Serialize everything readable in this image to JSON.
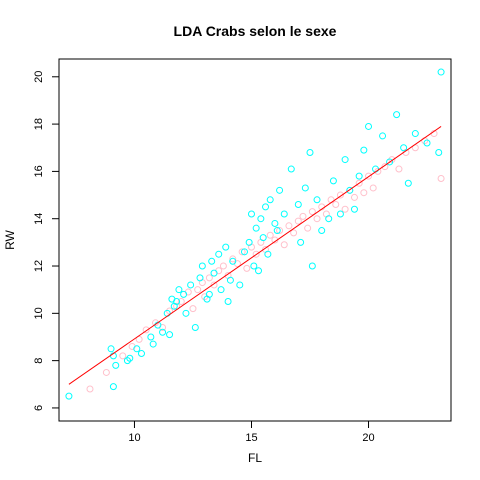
{
  "chart_data": {
    "type": "scatter",
    "title": "LDA Crabs selon le sexe",
    "xlabel": "FL",
    "ylabel": "RW",
    "xlim": [
      6.776,
      23.524
    ],
    "ylim": [
      5.448,
      20.752
    ],
    "xticks": [
      10,
      15,
      20
    ],
    "yticks": [
      6,
      8,
      10,
      12,
      14,
      16,
      18,
      20
    ],
    "grid": false,
    "legend": "none",
    "colors": {
      "group_a": "#00ffff",
      "group_b": "#ffc0cb",
      "fit": "#ff0000",
      "axis": "#000000"
    },
    "series": [
      {
        "key": "group_a",
        "x": [
          7.2,
          9.0,
          9.1,
          9.1,
          9.2,
          9.7,
          9.8,
          10.1,
          10.3,
          10.7,
          10.8,
          11.0,
          11.2,
          11.4,
          11.5,
          11.6,
          11.7,
          11.8,
          11.9,
          12.1,
          12.2,
          12.4,
          12.6,
          12.8,
          12.9,
          13.1,
          13.2,
          13.3,
          13.4,
          13.6,
          13.7,
          13.9,
          14.0,
          14.1,
          14.2,
          14.5,
          14.7,
          14.9,
          15.0,
          15.1,
          15.2,
          15.3,
          15.4,
          15.5,
          15.6,
          15.7,
          15.8,
          16.0,
          16.1,
          16.2,
          16.4,
          16.7,
          17.0,
          17.1,
          17.3,
          17.5,
          17.6,
          17.8,
          18.0,
          18.3,
          18.5,
          18.8,
          19.0,
          19.2,
          19.4,
          19.6,
          19.8,
          20.0,
          20.3,
          20.6,
          20.9,
          21.2,
          21.5,
          21.7,
          22.0,
          22.5,
          23.0,
          23.1
        ],
        "y": [
          6.5,
          8.5,
          6.9,
          8.2,
          7.8,
          8.0,
          8.1,
          8.5,
          8.3,
          9.0,
          8.7,
          9.5,
          9.2,
          10.0,
          9.1,
          10.6,
          10.3,
          10.5,
          11.0,
          10.8,
          10.0,
          11.2,
          9.4,
          11.5,
          12.0,
          10.6,
          10.8,
          12.2,
          11.7,
          12.5,
          11.0,
          12.8,
          10.5,
          11.4,
          12.2,
          11.2,
          12.6,
          13.0,
          14.2,
          12.0,
          13.6,
          11.8,
          14.0,
          13.2,
          14.5,
          12.5,
          14.8,
          13.8,
          13.5,
          15.2,
          14.2,
          16.1,
          14.6,
          13.0,
          15.3,
          16.8,
          12.0,
          14.8,
          13.5,
          14.0,
          15.6,
          14.2,
          16.5,
          15.2,
          14.4,
          15.8,
          16.9,
          17.9,
          16.1,
          17.5,
          16.4,
          18.4,
          17.0,
          15.5,
          17.6,
          17.2,
          16.8,
          20.2
        ]
      },
      {
        "key": "group_b",
        "x": [
          8.1,
          8.8,
          9.5,
          9.9,
          10.2,
          10.5,
          10.9,
          11.2,
          11.5,
          11.8,
          12.0,
          12.3,
          12.5,
          12.7,
          12.9,
          13.0,
          13.2,
          13.4,
          13.6,
          13.8,
          14.0,
          14.2,
          14.4,
          14.6,
          14.8,
          15.0,
          15.2,
          15.4,
          15.6,
          15.8,
          16.0,
          16.2,
          16.4,
          16.6,
          16.8,
          17.0,
          17.2,
          17.4,
          17.6,
          17.8,
          18.0,
          18.2,
          18.4,
          18.6,
          18.8,
          19.0,
          19.2,
          19.4,
          19.6,
          19.8,
          20.0,
          20.2,
          20.4,
          20.7,
          21.0,
          21.3,
          21.6,
          22.0,
          22.4,
          22.8,
          23.1
        ],
        "y": [
          6.8,
          7.5,
          8.2,
          8.6,
          8.9,
          9.3,
          9.6,
          9.4,
          10.1,
          10.3,
          10.5,
          10.9,
          10.2,
          11.0,
          11.3,
          10.7,
          11.5,
          11.2,
          11.8,
          12.0,
          11.6,
          12.3,
          12.1,
          12.6,
          11.9,
          12.8,
          12.5,
          13.0,
          12.7,
          13.3,
          13.1,
          13.5,
          12.9,
          13.7,
          13.4,
          13.9,
          14.1,
          13.6,
          14.3,
          14.0,
          14.5,
          14.2,
          14.8,
          14.6,
          15.0,
          14.4,
          15.2,
          14.9,
          15.5,
          15.1,
          15.8,
          15.3,
          16.0,
          16.2,
          16.5,
          16.1,
          16.8,
          17.0,
          17.3,
          17.6,
          15.7
        ]
      }
    ],
    "fit_line": {
      "x": [
        7.2,
        23.1
      ],
      "y": [
        7.0,
        17.9
      ]
    }
  }
}
